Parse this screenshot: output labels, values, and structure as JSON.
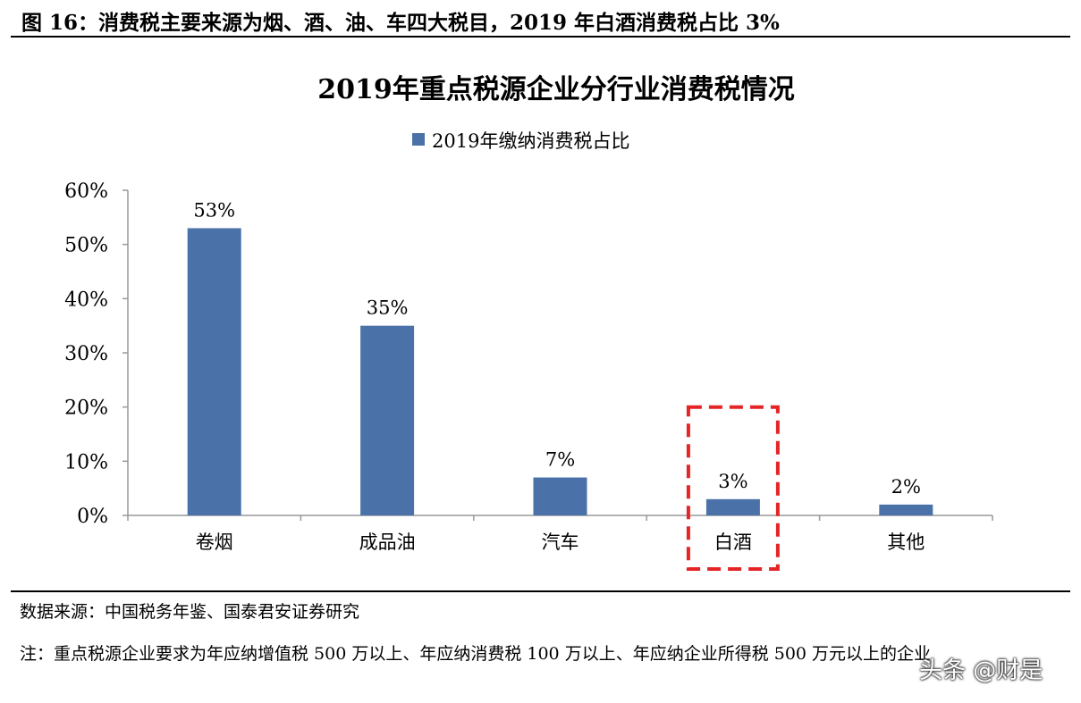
{
  "figure": {
    "title": "图 16：消费税主要来源为烟、酒、油、车四大税目，2019 年白酒消费税占比 3%"
  },
  "chart_data": {
    "type": "bar",
    "title": "2019年重点税源企业分行业消费税情况",
    "categories": [
      "卷烟",
      "成品油",
      "汽车",
      "白酒",
      "其他"
    ],
    "series": [
      {
        "name": "2019年缴纳消费税占比",
        "values": [
          53,
          35,
          7,
          3,
          2
        ],
        "color": "#4a72a8"
      }
    ],
    "data_labels": [
      "53%",
      "35%",
      "7%",
      "3%",
      "2%"
    ],
    "y_ticks": [
      "0%",
      "10%",
      "20%",
      "30%",
      "40%",
      "50%",
      "60%"
    ],
    "ylim": [
      0,
      60
    ],
    "xlabel": "",
    "ylabel": "",
    "legend": "top",
    "grid": false,
    "highlight": {
      "category": "白酒",
      "style": "dashed",
      "color": "#e52426"
    }
  },
  "footer": {
    "source": "数据来源：中国税务年鉴、国泰君安证券研究",
    "note": "注：重点税源企业要求为年应纳增值税 500 万以上、年应纳消费税 100 万以上、年应纳企业所得税 500 万元以上的企业"
  },
  "watermark": "头条 @财是"
}
